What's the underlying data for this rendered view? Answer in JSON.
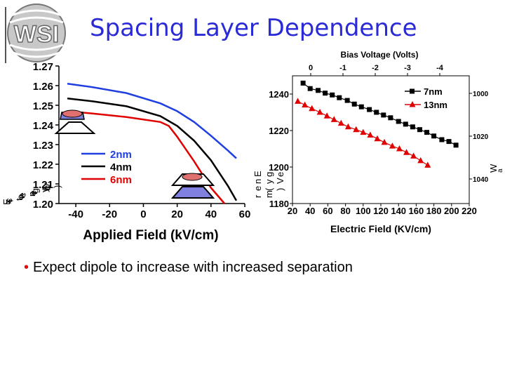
{
  "slide": {
    "title": "Spacing Layer Dependence",
    "bullet": "Expect dipole to increase with increased separation",
    "bullet_symbol": "•",
    "logo_text": "WSI"
  },
  "colors": {
    "title": "#2a2ad6",
    "blue": "#1f3fe0",
    "black": "#000000",
    "red": "#e00000",
    "dot_pink": "#e07070",
    "dot_blue": "#8080e0"
  },
  "chart_data": [
    {
      "type": "line",
      "xlabel": "Applied Field (kV/cm)",
      "ylabel": "Exciton energy (eV)",
      "ylabel_fragments": [
        "E",
        "x",
        "c",
        "i",
        "t",
        "o",
        "n",
        "e",
        "n",
        "e",
        "r",
        "g",
        "y",
        "(",
        "e",
        "V",
        ")"
      ],
      "xlim": [
        -50,
        60
      ],
      "ylim": [
        1.2,
        1.27
      ],
      "xticks": [
        -40,
        -20,
        0,
        20,
        40,
        60
      ],
      "xtick_labels": [
        "-40",
        "-20",
        "0",
        "20",
        "40",
        "60"
      ],
      "yticks": [
        1.2,
        1.21,
        1.22,
        1.23,
        1.24,
        1.25,
        1.26,
        1.27
      ],
      "ytick_labels": [
        "1.20",
        "1.21",
        "1.22",
        "1.23",
        "1.24",
        "1.25",
        "1.26",
        "1.27"
      ],
      "legend_position": "bottom-left",
      "series": [
        {
          "name": "2nm",
          "color": "#1f3fe0",
          "x": [
            -45,
            -30,
            -10,
            10,
            20,
            30,
            40,
            50,
            55
          ],
          "y": [
            1.261,
            1.2592,
            1.2562,
            1.251,
            1.247,
            1.2415,
            1.2345,
            1.227,
            1.223
          ]
        },
        {
          "name": "4nm",
          "color": "#000000",
          "x": [
            -45,
            -30,
            -10,
            10,
            20,
            30,
            40,
            50,
            55
          ],
          "y": [
            1.2535,
            1.252,
            1.2495,
            1.2445,
            1.2395,
            1.232,
            1.222,
            1.209,
            1.2015
          ]
        },
        {
          "name": "6nm",
          "color": "#e00000",
          "x": [
            -45,
            -30,
            -10,
            10,
            15,
            20,
            30,
            40,
            48
          ],
          "y": [
            1.247,
            1.2458,
            1.244,
            1.2415,
            1.2395,
            1.234,
            1.2215,
            1.208,
            1.2
          ]
        }
      ]
    },
    {
      "type": "scatter",
      "xlabel": "Electric Field (KV/cm)",
      "x2label": "Bias Voltage (Volts)",
      "ylabel": "Energy (meV)",
      "ylabel_fragments": [
        "E",
        "n",
        "e",
        "r",
        "g",
        "y",
        "(",
        "m",
        "e",
        "V",
        ")"
      ],
      "y2label": "Wavelength (nm)",
      "y2label_fragments": [
        "W",
        "a"
      ],
      "xlim": [
        20,
        220
      ],
      "ylim": [
        1180,
        1250
      ],
      "xticks": [
        20,
        40,
        60,
        80,
        100,
        120,
        140,
        160,
        180,
        200,
        220
      ],
      "xtick_labels": [
        "20",
        "40",
        "60",
        "80",
        "100",
        "120",
        "140",
        "160",
        "180",
        "200",
        "220"
      ],
      "yticks": [
        1180,
        1200,
        1220,
        1240
      ],
      "ytick_labels": [
        "1180",
        "1200",
        "1220",
        "1240"
      ],
      "x2ticks": [
        0,
        -1,
        -2,
        -3,
        -4
      ],
      "x2tick_labels": [
        "0",
        "-1",
        "-2",
        "-3",
        "-4"
      ],
      "y2tick_labels": [
        "1000",
        "1020",
        "1040"
      ],
      "legend_position": "top-right",
      "series": [
        {
          "name": "7nm",
          "color": "#000000",
          "marker": "square",
          "x": [
            32,
            40,
            49,
            57,
            65,
            73,
            82,
            90,
            98,
            107,
            115,
            123,
            131,
            140,
            148,
            156,
            164,
            172,
            180,
            189,
            197,
            205
          ],
          "y": [
            1246.0,
            1243.0,
            1242.0,
            1240.5,
            1239.5,
            1238.0,
            1236.5,
            1234.5,
            1233.0,
            1231.5,
            1230.0,
            1228.5,
            1227.0,
            1225.0,
            1223.5,
            1222.0,
            1220.5,
            1219.0,
            1217.0,
            1215.0,
            1214.0,
            1212.0
          ]
        },
        {
          "name": "13nm",
          "color": "#e00000",
          "marker": "triangle",
          "x": [
            26,
            34,
            42,
            51,
            59,
            67,
            75,
            83,
            92,
            100,
            108,
            116,
            124,
            133,
            141,
            149,
            157,
            165,
            173
          ],
          "y": [
            1236.0,
            1234.0,
            1232.0,
            1230.0,
            1228.0,
            1226.0,
            1224.0,
            1222.0,
            1220.5,
            1219.0,
            1217.5,
            1215.5,
            1213.5,
            1211.5,
            1210.0,
            1208.0,
            1206.0,
            1203.5,
            1201.0
          ]
        }
      ]
    }
  ]
}
